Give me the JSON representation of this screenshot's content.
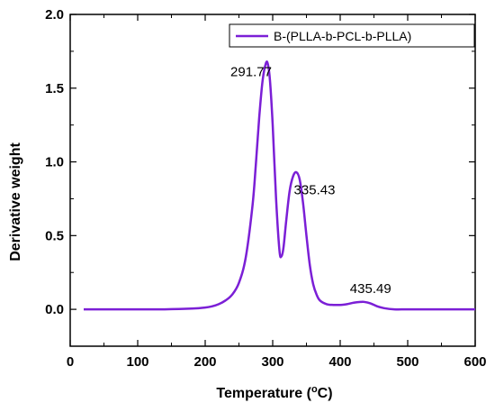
{
  "chart_data": {
    "type": "line",
    "xlabel": "Temperature (°C)",
    "xlabel_main": "Temperature (",
    "xlabel_unit": "C)",
    "ylabel": "Derivative weight",
    "xlim": [
      0,
      600
    ],
    "ylim": [
      -0.25,
      2.0
    ],
    "x_ticks": [
      0,
      100,
      200,
      300,
      400,
      500,
      600
    ],
    "x_tick_labels": [
      "0",
      "100",
      "200",
      "300",
      "400",
      "500",
      "600"
    ],
    "y_ticks": [
      0.0,
      0.5,
      1.0,
      1.5,
      2.0
    ],
    "y_tick_labels": [
      "0.0",
      "0.5",
      "1.0",
      "1.5",
      "2.0"
    ],
    "grid": false,
    "legend_position": "top-right",
    "line_color": "#7b1fd6",
    "series": [
      {
        "name": "B-(PLLA-b-PCL-b-PLLA)",
        "x": [
          20,
          60,
          100,
          140,
          180,
          200,
          210,
          220,
          230,
          240,
          250,
          260,
          270,
          275,
          280,
          285,
          290,
          293,
          296,
          300,
          305,
          310,
          313,
          316,
          320,
          325,
          330,
          335,
          340,
          345,
          350,
          355,
          360,
          365,
          370,
          380,
          390,
          400,
          410,
          420,
          430,
          436,
          445,
          455,
          465,
          480,
          500,
          540,
          580,
          600
        ],
        "y": [
          0.0,
          0.0,
          0.0,
          0.0,
          0.005,
          0.012,
          0.02,
          0.035,
          0.06,
          0.1,
          0.18,
          0.35,
          0.7,
          0.98,
          1.3,
          1.55,
          1.67,
          1.66,
          1.55,
          1.25,
          0.75,
          0.4,
          0.36,
          0.42,
          0.6,
          0.8,
          0.9,
          0.93,
          0.88,
          0.72,
          0.5,
          0.3,
          0.17,
          0.1,
          0.06,
          0.035,
          0.03,
          0.03,
          0.035,
          0.045,
          0.05,
          0.05,
          0.04,
          0.02,
          0.008,
          0.0,
          0.0,
          0.0,
          0.0,
          0.0
        ]
      }
    ],
    "annotations": [
      {
        "text": "291.77",
        "x": 268,
        "y": 1.58
      },
      {
        "text": "335.43",
        "x": 362,
        "y": 0.78
      },
      {
        "text": "435.49",
        "x": 445,
        "y": 0.11
      }
    ]
  }
}
